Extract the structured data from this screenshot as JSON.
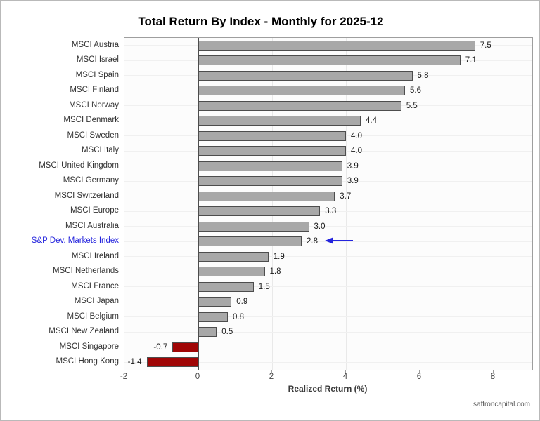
{
  "figure": {
    "source": "saffroncapital.com"
  },
  "chart_data": {
    "type": "bar",
    "orientation": "horizontal",
    "title": "Total Return By Index - Monthly for 2025-12",
    "xlabel": "Realized Return (%)",
    "xlim": [
      -2,
      9
    ],
    "x_ticks": [
      "-2",
      "0",
      "2",
      "4",
      "6",
      "8"
    ],
    "grid": "light vertical gridlines every 2 units; faint horizontal line per category row",
    "legend": "none",
    "categories": [
      "MSCI Austria",
      "MSCI Israel",
      "MSCI Spain",
      "MSCI Finland",
      "MSCI Norway",
      "MSCI Denmark",
      "MSCI Sweden",
      "MSCI Italy",
      "MSCI United Kingdom",
      "MSCI Germany",
      "MSCI Switzerland",
      "MSCI Europe",
      "MSCI Australia",
      "S&P Dev. Markets Index",
      "MSCI Ireland",
      "MSCI Netherlands",
      "MSCI France",
      "MSCI Japan",
      "MSCI Belgium",
      "MSCI New Zealand",
      "MSCI Singapore",
      "MSCI Hong Kong"
    ],
    "values": [
      7.5,
      7.1,
      5.8,
      5.6,
      5.5,
      4.4,
      4.0,
      4.0,
      3.9,
      3.9,
      3.7,
      3.3,
      3.0,
      2.8,
      1.9,
      1.8,
      1.5,
      0.9,
      0.8,
      0.5,
      -0.7,
      -1.4
    ],
    "value_labels": [
      "7.5",
      "7.1",
      "5.8",
      "5.6",
      "5.5",
      "4.4",
      "4.0",
      "4.0",
      "3.9",
      "3.9",
      "3.7",
      "3.3",
      "3.0",
      "2.8",
      "1.9",
      "1.8",
      "1.5",
      "0.9",
      "0.8",
      "0.5",
      "-0.7",
      "-1.4"
    ],
    "highlight": {
      "category": "S&P Dev. Markets Index",
      "value": 2.8,
      "label_color": "#2424dd",
      "annotation": "blue left-pointing arrow beside value label"
    },
    "colors": {
      "bar_positive": "#a8a8a8",
      "bar_negative": "#a00505",
      "bar_border": "#4d4d4d",
      "arrow_blue": "#2424dd",
      "category_label": "#333333",
      "value_label": "#1a1a1a",
      "tick_label": "#444444",
      "title": "#000000",
      "plot_background": "#fcfcfc",
      "plot_border": "#9e9e9e",
      "zero_line": "#4d4d4d"
    }
  }
}
